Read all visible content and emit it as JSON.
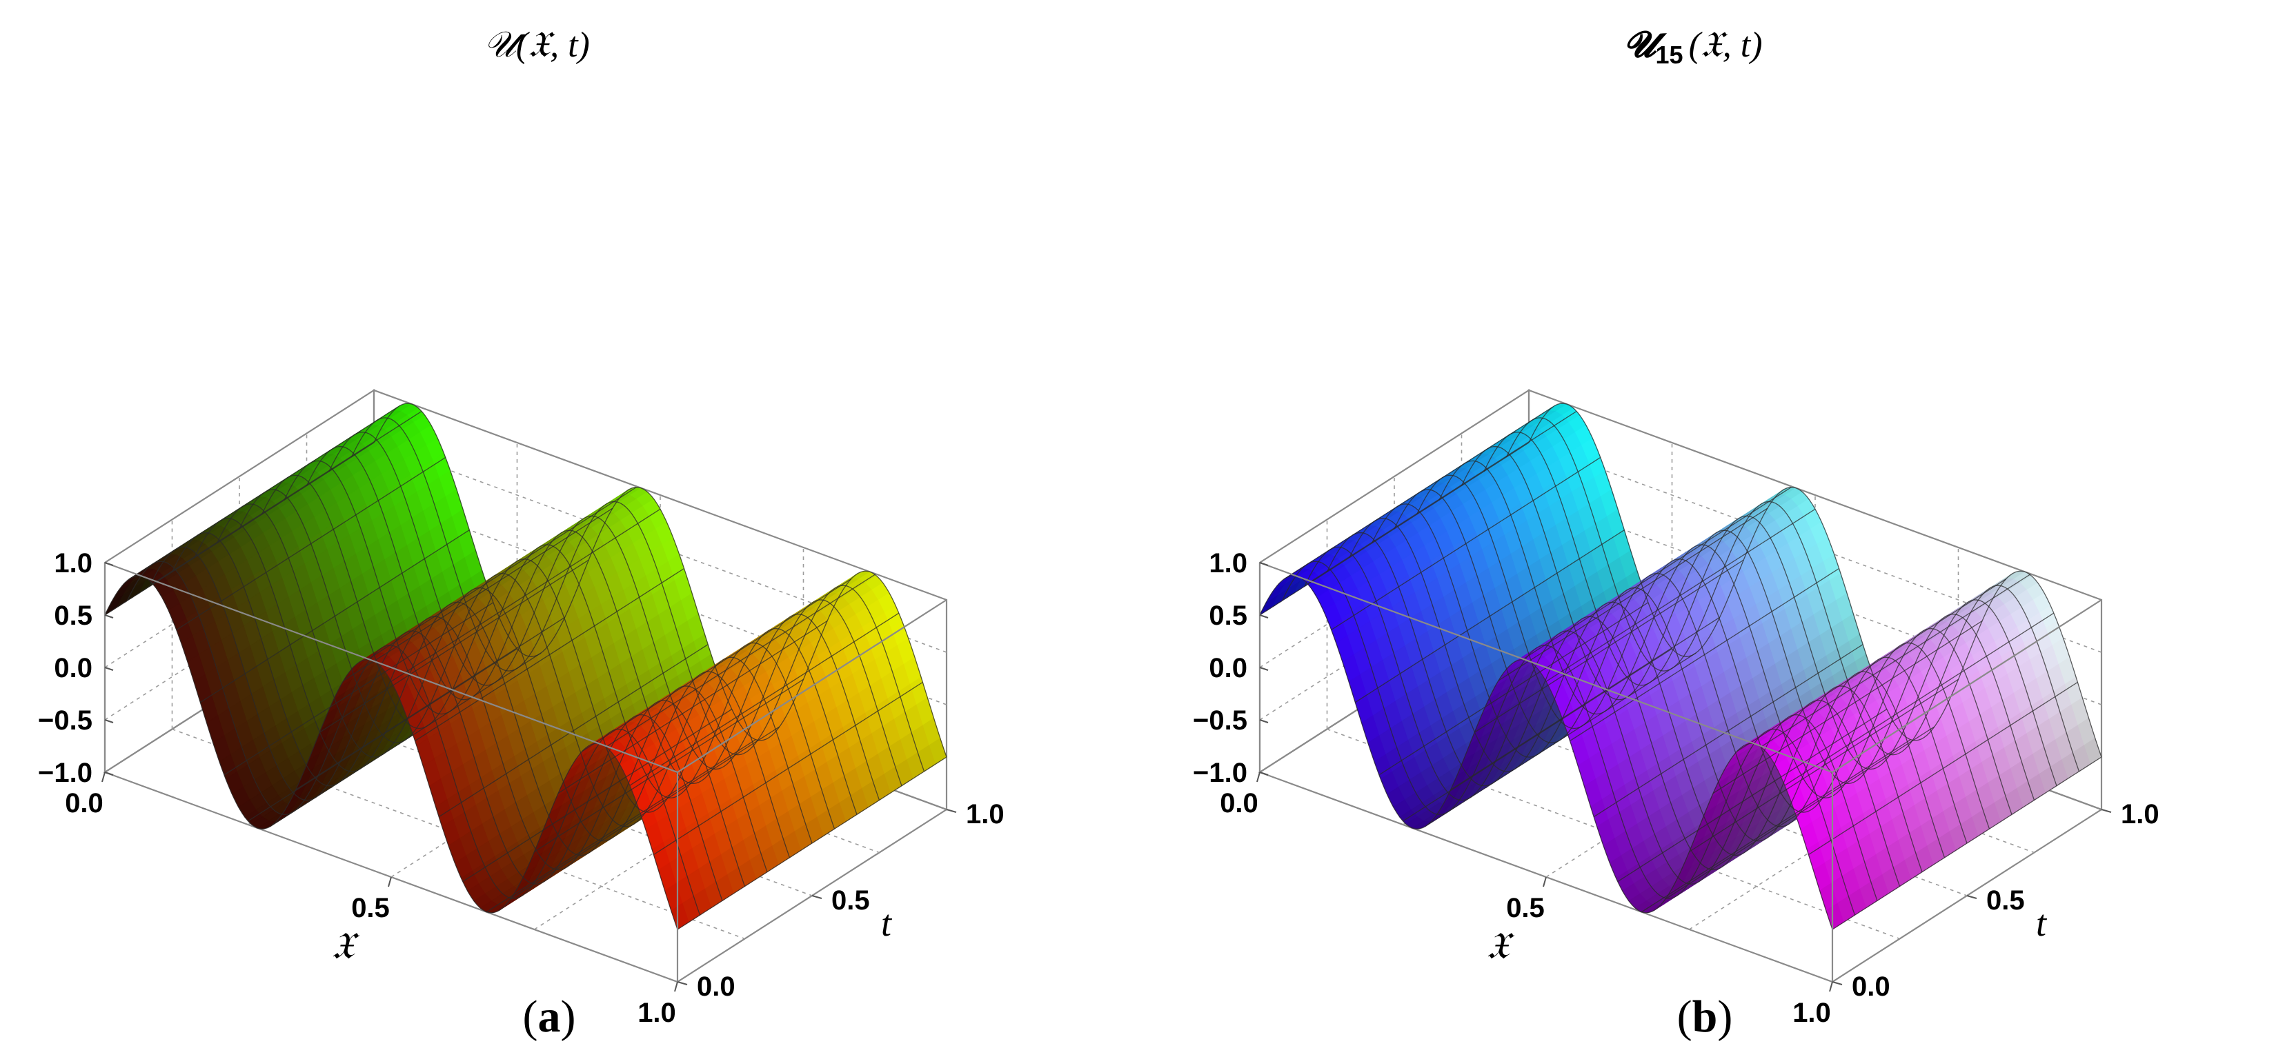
{
  "chart_data": [
    {
      "type": "surface3d",
      "panel": "(a)",
      "title": "𝒰(𝔛, t)",
      "xlabel": "𝔛",
      "ylabel": "t",
      "zlabel": "",
      "x_ticks": [
        "0.0",
        "0.5",
        "1.0"
      ],
      "t_ticks": [
        "0.0",
        "0.5",
        "1.0"
      ],
      "z_ticks": [
        "1.0",
        "0.5",
        "0.0",
        "−0.5",
        "−1.0"
      ],
      "xlim": [
        0,
        1
      ],
      "tlim": [
        0,
        1
      ],
      "zlim": [
        -1,
        1
      ],
      "grid": true,
      "surface": {
        "form": "sinusoidal ridges along t",
        "cycles_in_x": 2.5,
        "amplitude": 1.0,
        "z_at_x0": 0.5,
        "x_grid_lines": 24,
        "t_grid_lines": 12
      },
      "colors": {
        "low_x_low_t": "#300808",
        "high_x_low_t": "#ff1a00",
        "low_x_high_t": "#22ff00",
        "high_x_high_t": "#ffff00"
      }
    },
    {
      "type": "surface3d",
      "panel": "(b)",
      "title": "𝓤15(𝔛, t)",
      "xlabel": "𝔛",
      "ylabel": "t",
      "zlabel": "",
      "x_ticks": [
        "0.0",
        "0.5",
        "1.0"
      ],
      "t_ticks": [
        "0.0",
        "0.5",
        "1.0"
      ],
      "z_ticks": [
        "1.0",
        "0.5",
        "0.0",
        "−0.5",
        "−1.0"
      ],
      "xlim": [
        0,
        1
      ],
      "tlim": [
        0,
        1
      ],
      "zlim": [
        -1,
        1
      ],
      "grid": true,
      "surface": {
        "form": "sinusoidal ridges along t",
        "cycles_in_x": 2.5,
        "amplitude": 1.0,
        "z_at_x0": 0.5,
        "x_grid_lines": 24,
        "t_grid_lines": 12
      },
      "colors": {
        "low_x_low_t": "#1a00ff",
        "high_x_low_t": "#ff00ff",
        "low_x_high_t": "#00ffff",
        "high_x_high_t": "#ffffff"
      }
    }
  ],
  "captions": {
    "a": "a",
    "b": "b"
  },
  "title_b_parts": {
    "base": "𝓤",
    "sub": "15",
    "args": "(𝔛, t)"
  }
}
